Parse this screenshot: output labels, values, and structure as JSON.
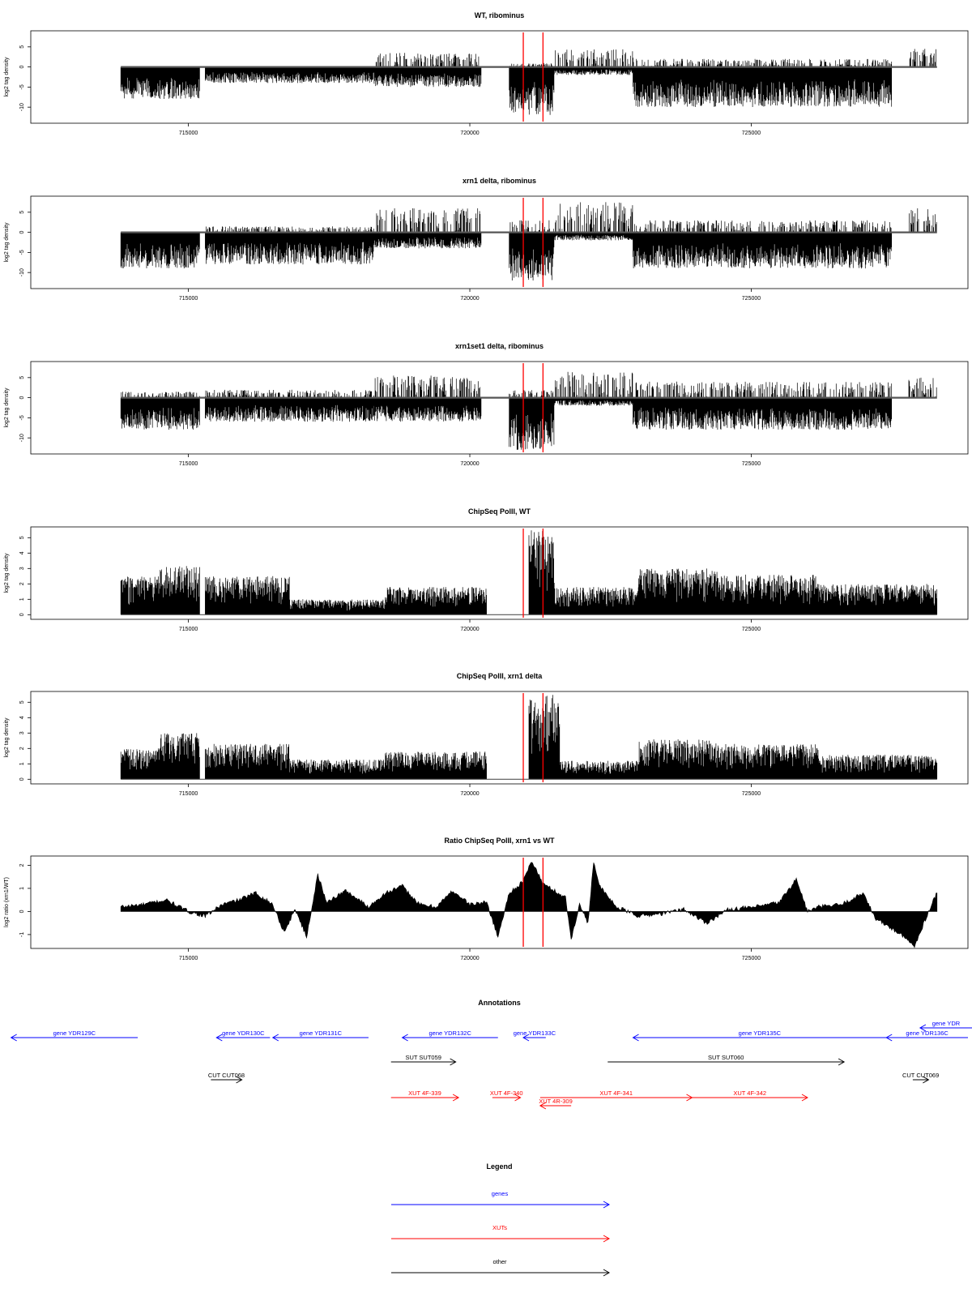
{
  "colors": {
    "genes": "#0000ff",
    "XUTs": "#ff0000",
    "other": "#000000",
    "data": "#000000",
    "marker": "#ff0000"
  },
  "chart_data": [
    {
      "type": "bar",
      "title": "WT, ribominus",
      "ylabel": "log2 tag density",
      "xlim": [
        712200,
        728850
      ],
      "ylim": [
        -14,
        9
      ],
      "xticks": [
        715000,
        720000,
        725000
      ],
      "yticks": [
        5,
        0,
        -5,
        -10
      ],
      "baseline": 0,
      "markers": [
        720950,
        721300
      ],
      "description_segments": [
        {
          "x": [
            713800,
            715200
          ],
          "top": 0.5,
          "bottom": -8
        },
        {
          "x": [
            715300,
            718300
          ],
          "top": 0.3,
          "bottom": -4
        },
        {
          "x": [
            718300,
            720200
          ],
          "top": 3.5,
          "bottom": -5
        },
        {
          "x": [
            720700,
            721500
          ],
          "top": 1.0,
          "bottom": -12
        },
        {
          "x": [
            721500,
            722900
          ],
          "top": 4.5,
          "bottom": -2
        },
        {
          "x": [
            722900,
            727500
          ],
          "top": 2.0,
          "bottom": -10
        },
        {
          "x": [
            727800,
            728300
          ],
          "top": 4.5,
          "bottom": 0
        }
      ]
    },
    {
      "type": "bar",
      "title": "xrn1 delta, ribominus",
      "ylabel": "log2 tag density",
      "xlim": [
        712200,
        728850
      ],
      "ylim": [
        -14,
        9
      ],
      "xticks": [
        715000,
        720000,
        725000
      ],
      "yticks": [
        5,
        0,
        -5,
        -10
      ],
      "baseline": 0,
      "markers": [
        720950,
        721300
      ],
      "description_segments": [
        {
          "x": [
            713800,
            715200
          ],
          "top": 0.5,
          "bottom": -9
        },
        {
          "x": [
            715300,
            718300
          ],
          "top": 1.5,
          "bottom": -8
        },
        {
          "x": [
            718300,
            720200
          ],
          "top": 6.0,
          "bottom": -4
        },
        {
          "x": [
            720700,
            721500
          ],
          "top": 3.0,
          "bottom": -12
        },
        {
          "x": [
            721500,
            722900
          ],
          "top": 7.5,
          "bottom": -2
        },
        {
          "x": [
            722900,
            727500
          ],
          "top": 3.0,
          "bottom": -9
        },
        {
          "x": [
            727800,
            728300
          ],
          "top": 6.0,
          "bottom": 0
        }
      ]
    },
    {
      "type": "bar",
      "title": "xrn1set1 delta, ribominus",
      "ylabel": "log2 tag density",
      "xlim": [
        712200,
        728850
      ],
      "ylim": [
        -14,
        9
      ],
      "xticks": [
        715000,
        720000,
        725000
      ],
      "yticks": [
        5,
        0,
        -5,
        -10
      ],
      "baseline": 0,
      "markers": [
        720950,
        721300
      ],
      "description_segments": [
        {
          "x": [
            713800,
            715200
          ],
          "top": 1.5,
          "bottom": -8
        },
        {
          "x": [
            715300,
            718300
          ],
          "top": 2.0,
          "bottom": -6
        },
        {
          "x": [
            718300,
            720200
          ],
          "top": 5.5,
          "bottom": -6
        },
        {
          "x": [
            720700,
            721500
          ],
          "top": 2.0,
          "bottom": -13
        },
        {
          "x": [
            721500,
            722900
          ],
          "top": 6.5,
          "bottom": -2
        },
        {
          "x": [
            722900,
            727500
          ],
          "top": 4.0,
          "bottom": -8
        },
        {
          "x": [
            727800,
            728300
          ],
          "top": 5.0,
          "bottom": 0
        }
      ]
    },
    {
      "type": "bar",
      "title": "ChipSeq PolII, WT",
      "ylabel": "log2 tag density",
      "xlim": [
        712200,
        728850
      ],
      "ylim": [
        -0.3,
        5.7
      ],
      "xticks": [
        715000,
        720000,
        725000
      ],
      "yticks": [
        0,
        1,
        2,
        3,
        4,
        5
      ],
      "baseline": 0,
      "markers": [
        720950,
        721300
      ],
      "description_segments": [
        {
          "x": [
            713800,
            714500
          ],
          "top": 2.5,
          "bottom": 0
        },
        {
          "x": [
            714500,
            715200
          ],
          "top": 3.2,
          "bottom": 0
        },
        {
          "x": [
            715300,
            716800
          ],
          "top": 2.5,
          "bottom": 0
        },
        {
          "x": [
            716800,
            718500
          ],
          "top": 1.0,
          "bottom": 0
        },
        {
          "x": [
            718500,
            720300
          ],
          "top": 1.8,
          "bottom": 0
        },
        {
          "x": [
            721050,
            721500
          ],
          "top": 5.5,
          "bottom": 0
        },
        {
          "x": [
            721500,
            723000
          ],
          "top": 1.8,
          "bottom": 0
        },
        {
          "x": [
            723000,
            724400
          ],
          "top": 3.0,
          "bottom": 0
        },
        {
          "x": [
            724400,
            726200
          ],
          "top": 2.6,
          "bottom": 0
        },
        {
          "x": [
            726200,
            728300
          ],
          "top": 2.0,
          "bottom": 0
        }
      ]
    },
    {
      "type": "bar",
      "title": "ChipSeq PolII, xrn1 delta",
      "ylabel": "log2 tag density",
      "xlim": [
        712200,
        728850
      ],
      "ylim": [
        -0.3,
        5.7
      ],
      "xticks": [
        715000,
        720000,
        725000
      ],
      "yticks": [
        0,
        1,
        2,
        3,
        4,
        5
      ],
      "baseline": 0,
      "markers": [
        720950,
        721300
      ],
      "description_segments": [
        {
          "x": [
            713800,
            714500
          ],
          "top": 2.0,
          "bottom": 0
        },
        {
          "x": [
            714500,
            715200
          ],
          "top": 3.0,
          "bottom": 0
        },
        {
          "x": [
            715300,
            716800
          ],
          "top": 2.3,
          "bottom": 0
        },
        {
          "x": [
            716800,
            718500
          ],
          "top": 1.3,
          "bottom": 0
        },
        {
          "x": [
            718500,
            720300
          ],
          "top": 1.8,
          "bottom": 0
        },
        {
          "x": [
            721050,
            721600
          ],
          "top": 5.5,
          "bottom": 0
        },
        {
          "x": [
            721600,
            723000
          ],
          "top": 1.2,
          "bottom": 0
        },
        {
          "x": [
            723000,
            724400
          ],
          "top": 2.6,
          "bottom": 0
        },
        {
          "x": [
            724400,
            726200
          ],
          "top": 2.3,
          "bottom": 0
        },
        {
          "x": [
            726200,
            728300
          ],
          "top": 1.6,
          "bottom": 0
        }
      ]
    },
    {
      "type": "area",
      "title": "Ratio ChipSeq PolII, xrn1 vs WT",
      "ylabel": "log2 ratio (xrn1/WT)",
      "xlim": [
        712200,
        728850
      ],
      "ylim": [
        -1.6,
        2.4
      ],
      "xticks": [
        715000,
        720000,
        725000
      ],
      "yticks": [
        -1,
        0,
        1,
        2
      ],
      "baseline": 0,
      "markers": [
        720950,
        721300
      ],
      "x": [
        713800,
        714200,
        714600,
        715000,
        715300,
        715600,
        715900,
        716200,
        716500,
        716700,
        716900,
        717100,
        717300,
        717450,
        717800,
        718200,
        718500,
        718800,
        719100,
        719400,
        719700,
        720000,
        720300,
        720500,
        720700,
        720950,
        721100,
        721300,
        721700,
        721800,
        721950,
        722100,
        722200,
        722300,
        722600,
        723000,
        723400,
        723800,
        724200,
        724600,
        725100,
        725500,
        725800,
        726000,
        726200,
        726600,
        727000,
        727200,
        727600,
        727900,
        728200,
        728300
      ],
      "values": [
        0.2,
        0.3,
        0.5,
        0.0,
        -0.2,
        0.3,
        0.5,
        0.8,
        0.3,
        -0.9,
        0.1,
        -1.1,
        1.6,
        0.4,
        0.9,
        0.2,
        0.8,
        1.1,
        0.3,
        0.2,
        0.9,
        0.3,
        0.4,
        -1.1,
        0.8,
        1.3,
        2.2,
        1.2,
        0.6,
        -1.2,
        0.3,
        -0.5,
        2.2,
        1.1,
        0.2,
        -0.2,
        -0.1,
        0.1,
        -0.5,
        0.1,
        0.2,
        0.4,
        1.4,
        0.0,
        0.2,
        0.3,
        0.8,
        -0.3,
        -0.9,
        -1.5,
        0.3,
        0.8
      ]
    }
  ],
  "annotations": {
    "title": "Annotations",
    "xlim": [
      712200,
      728850
    ],
    "features": [
      {
        "label": "gene YDR129C",
        "category": "genes",
        "start": 714100,
        "end": 711850,
        "row": 0
      },
      {
        "label": "gene YDR130C",
        "category": "genes",
        "start": 716450,
        "end": 715500,
        "row": 0
      },
      {
        "label": "gene YDR131C",
        "category": "genes",
        "start": 718200,
        "end": 716500,
        "row": 0
      },
      {
        "label": "gene YDR132C",
        "category": "genes",
        "start": 720500,
        "end": 718800,
        "row": 0
      },
      {
        "label": "gene YDR133C",
        "category": "genes",
        "start": 721350,
        "end": 720950,
        "row": 0
      },
      {
        "label": "gene YDR135C",
        "category": "genes",
        "start": 727400,
        "end": 722900,
        "row": 0
      },
      {
        "label": "gene YDR136C",
        "category": "genes",
        "start": 728850,
        "end": 727400,
        "row": 0
      },
      {
        "label": "gene YDR",
        "category": "genes",
        "start": 729500,
        "end": 728000,
        "row": -1
      },
      {
        "label": "SUT SUT059",
        "category": "other",
        "start": 718600,
        "end": 719750,
        "row": 1
      },
      {
        "label": "SUT SUT060",
        "category": "other",
        "start": 722450,
        "end": 726650,
        "row": 1
      },
      {
        "label": "CUT CUT068",
        "category": "other",
        "start": 715400,
        "end": 715950,
        "row": 2
      },
      {
        "label": "CUT CUT069",
        "category": "other",
        "start": 727870,
        "end": 728150,
        "row": 2
      },
      {
        "label": "XUT 4F-339",
        "category": "XUTs",
        "start": 718600,
        "end": 719800,
        "row": 3
      },
      {
        "label": "XUT 4F-340",
        "category": "XUTs",
        "start": 720400,
        "end": 720900,
        "row": 3
      },
      {
        "label": "XUT 4R-309",
        "category": "XUTs",
        "start": 721800,
        "end": 721250,
        "row": 4
      },
      {
        "label": "XUT 4F-341",
        "category": "XUTs",
        "start": 721250,
        "end": 723950,
        "row": 3
      },
      {
        "label": "XUT 4F-342",
        "category": "XUTs",
        "start": 723950,
        "end": 726000,
        "row": 3
      }
    ]
  },
  "legend": {
    "title": "Legend",
    "entries": [
      {
        "label": "genes",
        "category": "genes"
      },
      {
        "label": "XUTs",
        "category": "XUTs"
      },
      {
        "label": "other",
        "category": "other"
      }
    ]
  }
}
